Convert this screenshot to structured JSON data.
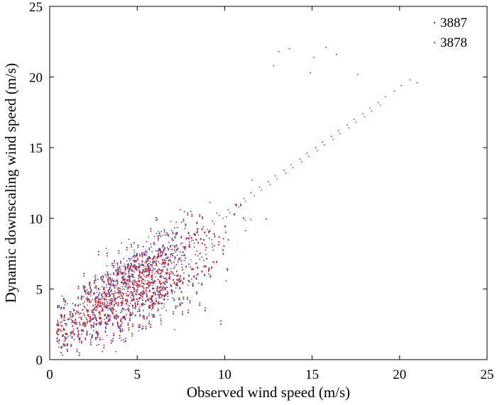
{
  "chart_data": {
    "type": "scatter",
    "title": "",
    "xlabel": "Observed  wind  speed  (m/s)",
    "ylabel": "Dynamic  downscaling  wind  speed  (m/s)",
    "xlim": [
      0,
      25
    ],
    "ylim": [
      0,
      25
    ],
    "xticks": [
      0,
      5,
      10,
      15,
      20,
      25
    ],
    "yticks": [
      0,
      5,
      10,
      15,
      20,
      25
    ],
    "grid": false,
    "legend_position": "top-right",
    "series": [
      {
        "name": "3887",
        "color": "#3a3ab4",
        "points_shown": "dense cloud, approx. 0-21 m/s observed, 0-22 m/s downscaled",
        "x": [
          0.5,
          0.8,
          1.2,
          1.7,
          2.1,
          2.6,
          3.0,
          3.4,
          3.9,
          4.3,
          4.8,
          5.2,
          5.7,
          6.1,
          6.6,
          7.0,
          7.5,
          7.9,
          8.4,
          8.8,
          9.3,
          9.7,
          10.2,
          10.6,
          11.1,
          11.5,
          12.0,
          12.5,
          12.9,
          13.4,
          13.8,
          14.3,
          14.7,
          15.2,
          15.6,
          16.1,
          16.5,
          17.0,
          17.4,
          17.9,
          18.3,
          18.8,
          19.2,
          19.7,
          20.1,
          20.6,
          21.0,
          13.1,
          13.7,
          15.1,
          15.8,
          16.4,
          14.9,
          12.8,
          17.6
        ],
        "y": [
          2.1,
          2.8,
          3.0,
          3.2,
          3.5,
          3.9,
          4.3,
          4.6,
          5.0,
          5.4,
          5.8,
          6.2,
          6.6,
          7.0,
          7.4,
          7.8,
          8.2,
          8.6,
          9.0,
          9.4,
          9.8,
          10.2,
          10.6,
          11.0,
          11.4,
          11.8,
          12.2,
          12.6,
          13.0,
          13.4,
          13.8,
          14.2,
          14.6,
          15.0,
          15.4,
          15.8,
          16.2,
          16.6,
          17.0,
          17.4,
          17.8,
          18.2,
          18.6,
          19.0,
          19.4,
          19.8,
          19.6,
          21.8,
          22.0,
          21.4,
          22.1,
          21.6,
          20.3,
          20.8,
          20.2
        ]
      },
      {
        "name": "3878",
        "color": "#e8332a",
        "points_shown": "dense cloud, approx. 0-19 m/s observed, 0-19 m/s downscaled",
        "x": [
          0.5,
          0.9,
          1.3,
          1.8,
          2.2,
          2.7,
          3.1,
          3.6,
          4.0,
          4.5,
          4.9,
          5.4,
          5.8,
          6.3,
          6.7,
          7.2,
          7.6,
          8.1,
          8.5,
          9.0,
          9.4,
          9.9,
          10.3,
          10.8,
          11.2,
          11.7,
          12.1,
          12.6,
          13.0,
          13.5,
          13.9,
          14.4,
          14.8,
          15.3,
          15.7,
          16.2,
          16.6,
          17.1,
          17.5,
          18.0,
          18.4,
          18.9
        ],
        "y": [
          2.4,
          2.5,
          2.7,
          2.9,
          3.2,
          3.5,
          3.9,
          4.3,
          4.7,
          5.1,
          5.5,
          5.9,
          6.3,
          6.8,
          7.2,
          7.6,
          8.0,
          8.4,
          8.8,
          9.2,
          9.6,
          10.0,
          10.4,
          10.8,
          11.2,
          11.6,
          12.0,
          12.4,
          12.8,
          13.2,
          13.6,
          14.0,
          14.4,
          14.8,
          15.2,
          15.6,
          16.0,
          16.4,
          16.8,
          17.2,
          17.6,
          18.0
        ]
      }
    ]
  }
}
